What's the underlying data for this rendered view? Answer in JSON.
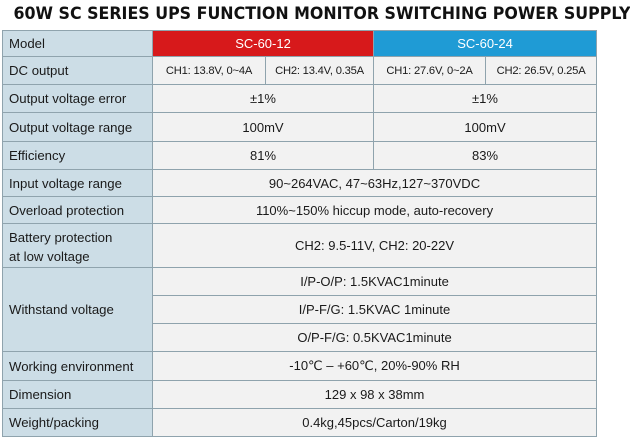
{
  "title": "60W SC SERIES UPS FUNCTION MONITOR SWITCHING POWER SUPPLY",
  "header": {
    "label": "Model",
    "models": [
      "SC-60-12",
      "SC-60-24"
    ],
    "colors": {
      "model_12": "#d7191b",
      "model_24": "#1f9bd5"
    }
  },
  "rows": {
    "dc_output": {
      "label": "DC output",
      "sc12_ch1": "CH1: 13.8V, 0~4A",
      "sc12_ch2": "CH2: 13.4V, 0.35A",
      "sc24_ch1": "CH1: 27.6V, 0~2A",
      "sc24_ch2": "CH2: 26.5V, 0.25A"
    },
    "output_voltage_error": {
      "label": "Output voltage error",
      "sc12": "±1%",
      "sc24": "±1%"
    },
    "output_voltage_range": {
      "label": "Output voltage range",
      "sc12": "100mV",
      "sc24": "100mV"
    },
    "efficiency": {
      "label": "Efficiency",
      "sc12": "81%",
      "sc24": "83%"
    },
    "input_voltage_range": {
      "label": "Input voltage range",
      "value": "90~264VAC, 47~63Hz,127~370VDC"
    },
    "overload_protection": {
      "label": "Overload protection",
      "value": "110%~150% hiccup mode, auto-recovery"
    },
    "battery_protection": {
      "label_line1": "Battery protection",
      "label_line2": "at low voltage",
      "value": "CH2: 9.5-11V, CH2: 20-22V"
    },
    "withstand_voltage": {
      "label": "Withstand voltage",
      "values": [
        "I/P-O/P: 1.5KVAC1minute",
        "I/P-F/G: 1.5KVAC 1minute",
        "O/P-F/G: 0.5KVAC1minute"
      ]
    },
    "working_environment": {
      "label": "Working environment",
      "value": "-10℃ – +60℃, 20%-90% RH"
    },
    "dimension": {
      "label": "Dimension",
      "value": "129 x 98 x 38mm"
    },
    "weight_packing": {
      "label": "Weight/packing",
      "value": "0.4kg,45pcs/Carton/19kg"
    }
  }
}
